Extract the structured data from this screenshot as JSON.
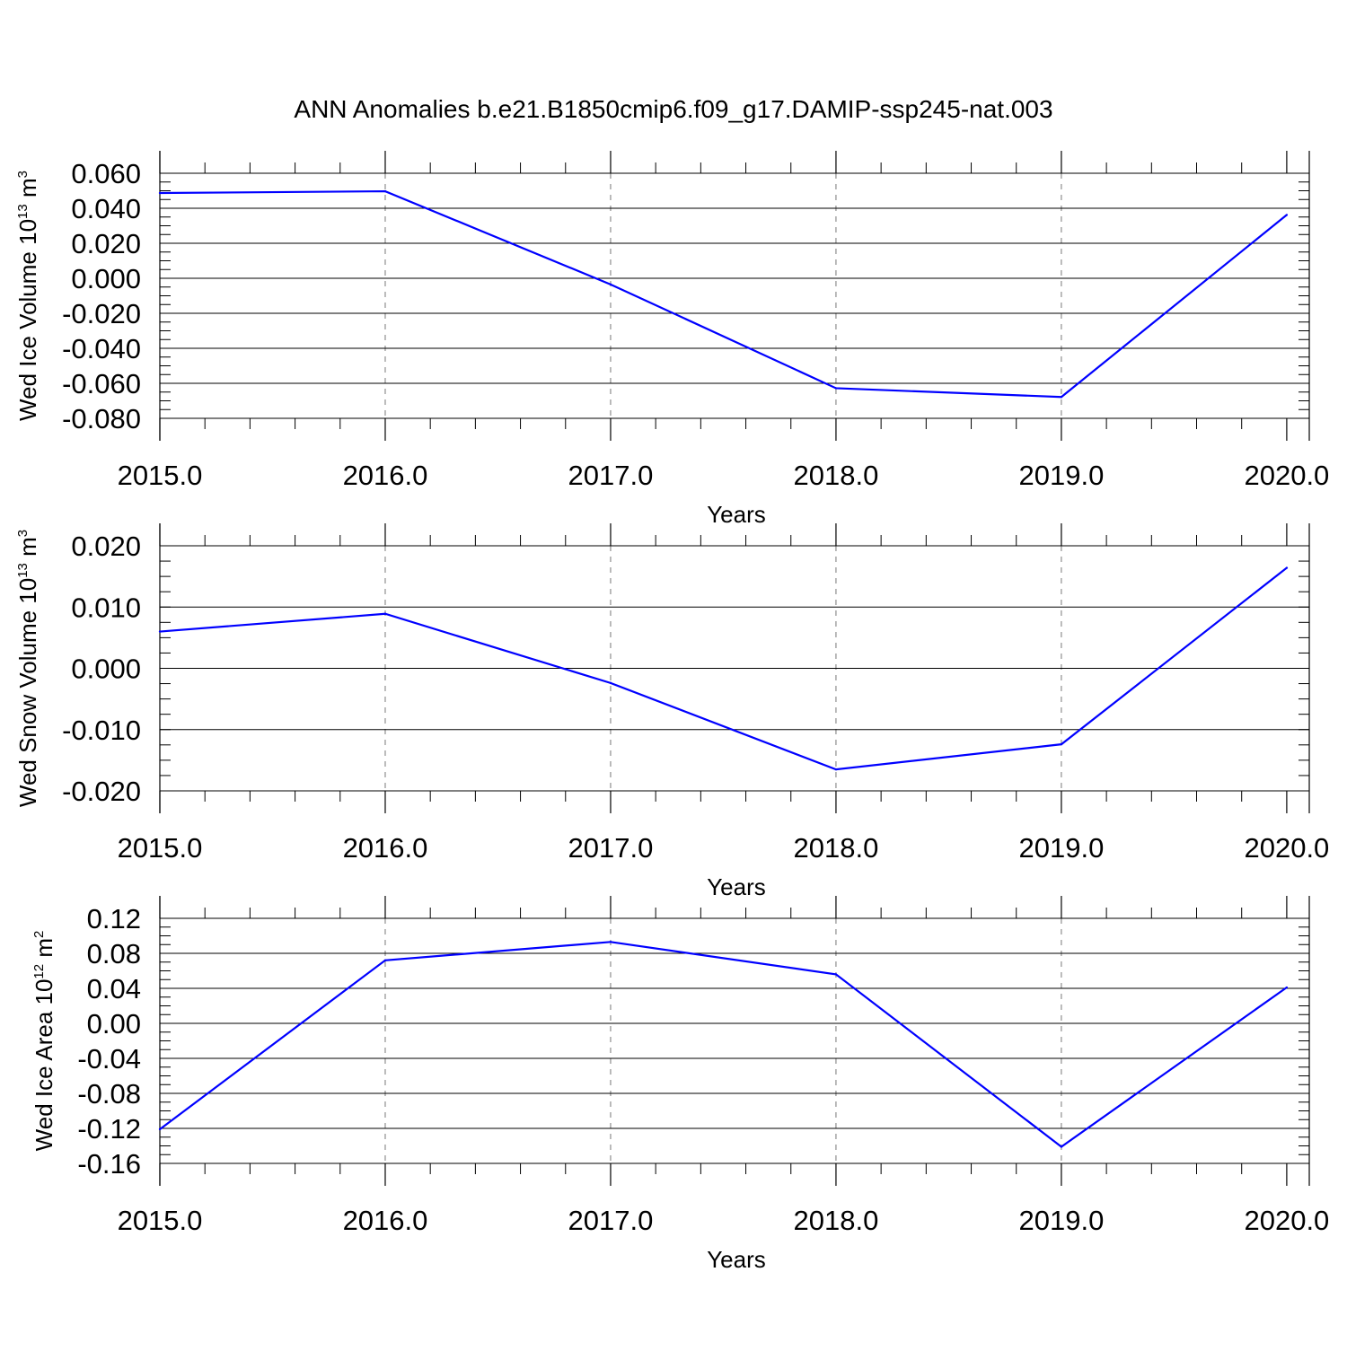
{
  "title": "ANN Anomalies b.e21.B1850cmip6.f09_g17.DAMIP-ssp245-nat.003",
  "chart_data": [
    {
      "type": "line",
      "title": "ANN Anomalies b.e21.B1850cmip6.f09_g17.DAMIP-ssp245-nat.003",
      "xlabel": "Years",
      "ylabel": {
        "text": "Wed Ice Volume 10",
        "exp": "13",
        "unit": " m",
        "unit_exp": "3"
      },
      "x_ticks": [
        2015,
        2016,
        2017,
        2018,
        2019,
        2020
      ],
      "x_tick_labels": [
        "2015.0",
        "2016.0",
        "2017.0",
        "2018.0",
        "2019.0",
        "2020.0"
      ],
      "xlim": [
        2015,
        2020.1
      ],
      "y_ticks": [
        0.06,
        0.04,
        0.02,
        0.0,
        -0.02,
        -0.04,
        -0.06,
        -0.08
      ],
      "y_tick_labels": [
        "0.060",
        "0.040",
        "0.020",
        "0.000",
        "-0.020",
        "-0.040",
        "-0.060",
        "-0.080"
      ],
      "ylim": [
        -0.08,
        0.06
      ],
      "y_minor_step": 0.005,
      "grid": "vertical dashed at major x ticks",
      "series": [
        {
          "color": "#0000ff",
          "x": [
            2015,
            2016,
            2017,
            2018,
            2019,
            2020
          ],
          "y": [
            0.0487,
            0.0497,
            -0.0035,
            -0.0628,
            -0.0678,
            0.0362
          ]
        }
      ]
    },
    {
      "type": "line",
      "xlabel": "Years",
      "ylabel": {
        "text": "Wed Snow Volume 10",
        "exp": "13",
        "unit": " m",
        "unit_exp": "3"
      },
      "x_ticks": [
        2015,
        2016,
        2017,
        2018,
        2019,
        2020
      ],
      "x_tick_labels": [
        "2015.0",
        "2016.0",
        "2017.0",
        "2018.0",
        "2019.0",
        "2020.0"
      ],
      "xlim": [
        2015,
        2020.1
      ],
      "y_ticks": [
        0.02,
        0.01,
        0.0,
        -0.01,
        -0.02
      ],
      "y_tick_labels": [
        "0.020",
        "0.010",
        "0.000",
        "-0.010",
        "-0.020"
      ],
      "ylim": [
        -0.02,
        0.02
      ],
      "y_minor_step": 0.0025,
      "grid": "vertical dashed at major x ticks",
      "series": [
        {
          "color": "#0000ff",
          "x": [
            2015,
            2016,
            2017,
            2018,
            2019,
            2020
          ],
          "y": [
            0.006,
            0.0089,
            -0.0024,
            -0.0165,
            -0.0124,
            0.0164
          ]
        }
      ]
    },
    {
      "type": "line",
      "xlabel": "Years",
      "ylabel": {
        "text": "Wed Ice Area 10",
        "exp": "12",
        "unit": " m",
        "unit_exp": "2"
      },
      "x_ticks": [
        2015,
        2016,
        2017,
        2018,
        2019,
        2020
      ],
      "x_tick_labels": [
        "2015.0",
        "2016.0",
        "2017.0",
        "2018.0",
        "2019.0",
        "2020.0"
      ],
      "xlim": [
        2015,
        2020.1
      ],
      "y_ticks": [
        0.12,
        0.08,
        0.04,
        0.0,
        -0.04,
        -0.08,
        -0.12,
        -0.16
      ],
      "y_tick_labels": [
        "0.12",
        "0.08",
        "0.04",
        "0.00",
        "-0.04",
        "-0.08",
        "-0.12",
        "-0.16"
      ],
      "ylim": [
        -0.16,
        0.12
      ],
      "y_minor_step": 0.01,
      "grid": "vertical dashed at major x ticks",
      "series": [
        {
          "color": "#0000ff",
          "x": [
            2015,
            2016,
            2017,
            2018,
            2019,
            2020
          ],
          "y": [
            -0.121,
            0.072,
            0.093,
            0.056,
            -0.141,
            0.041
          ]
        }
      ]
    }
  ]
}
